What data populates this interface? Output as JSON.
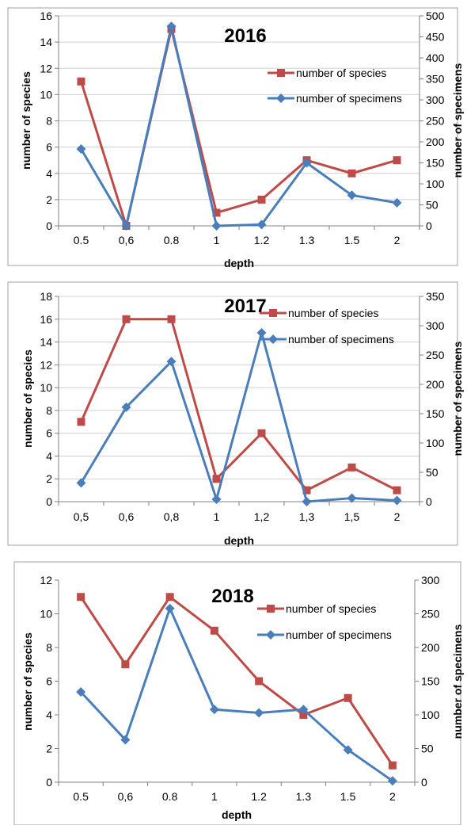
{
  "colors": {
    "species": "#be4b48",
    "specimens": "#4a7ebb",
    "grid": "#d0d0d0",
    "axis": "#808080",
    "frame": "#a0a0a0"
  },
  "chart_data": [
    {
      "type": "line",
      "title": "2016",
      "xlabel": "depth",
      "ylabel": "number of species",
      "y2label": "number of specimens",
      "categories": [
        "0.5",
        "0,6",
        "0.8",
        "1",
        "1.2",
        "1.3",
        "1.5",
        "2"
      ],
      "ylim": [
        0,
        16
      ],
      "yticks": [
        0,
        2,
        4,
        6,
        8,
        10,
        12,
        14,
        16
      ],
      "y2lim": [
        0,
        500
      ],
      "y2ticks": [
        0,
        50,
        100,
        150,
        200,
        250,
        300,
        350,
        400,
        450,
        500
      ],
      "grid": true,
      "legend": "right",
      "series": [
        {
          "name": "number of species",
          "axis": "left",
          "marker": "square",
          "values": [
            11,
            0,
            15,
            1,
            2,
            5,
            4,
            5
          ]
        },
        {
          "name": "number of specimens",
          "axis": "right",
          "marker": "diamond",
          "values": [
            183,
            0,
            475,
            0,
            3,
            150,
            73,
            55
          ]
        }
      ]
    },
    {
      "type": "line",
      "title": "2017",
      "xlabel": "depth",
      "ylabel": "number of species",
      "y2label": "number of specimens",
      "categories": [
        "0,5",
        "0,6",
        "0,8",
        "1",
        "1,2",
        "1,3",
        "1,5",
        "2"
      ],
      "ylim": [
        0,
        18
      ],
      "yticks": [
        0,
        2,
        4,
        6,
        8,
        10,
        12,
        14,
        16,
        18
      ],
      "y2lim": [
        0,
        350
      ],
      "y2ticks": [
        0,
        50,
        100,
        150,
        200,
        250,
        300,
        350
      ],
      "grid": true,
      "legend": "top-right",
      "series": [
        {
          "name": "number of species",
          "axis": "left",
          "marker": "square",
          "values": [
            7,
            16,
            16,
            2,
            6,
            1,
            3,
            1
          ]
        },
        {
          "name": "number of specimens",
          "axis": "right",
          "marker": "diamond",
          "values": [
            32,
            161,
            239,
            4,
            288,
            0,
            6,
            2
          ]
        }
      ]
    },
    {
      "type": "line",
      "title": "2018",
      "xlabel": "depth",
      "ylabel": "number of species",
      "y2label": "number of specimens",
      "categories": [
        "0.5",
        "0,6",
        "0.8",
        "1",
        "1.2",
        "1.3",
        "1.5",
        "2"
      ],
      "ylim": [
        0,
        12
      ],
      "yticks": [
        0,
        2,
        4,
        6,
        8,
        10,
        12
      ],
      "y2lim": [
        0,
        300
      ],
      "y2ticks": [
        0,
        50,
        100,
        150,
        200,
        250,
        300
      ],
      "grid": false,
      "legend": "top-right",
      "series": [
        {
          "name": "number of species",
          "axis": "left",
          "marker": "square",
          "values": [
            11,
            7,
            11,
            9,
            6,
            4,
            5,
            1
          ]
        },
        {
          "name": "number of specimens",
          "axis": "right",
          "marker": "diamond",
          "values": [
            134,
            63,
            258,
            108,
            103,
            108,
            48,
            2
          ]
        }
      ]
    }
  ]
}
